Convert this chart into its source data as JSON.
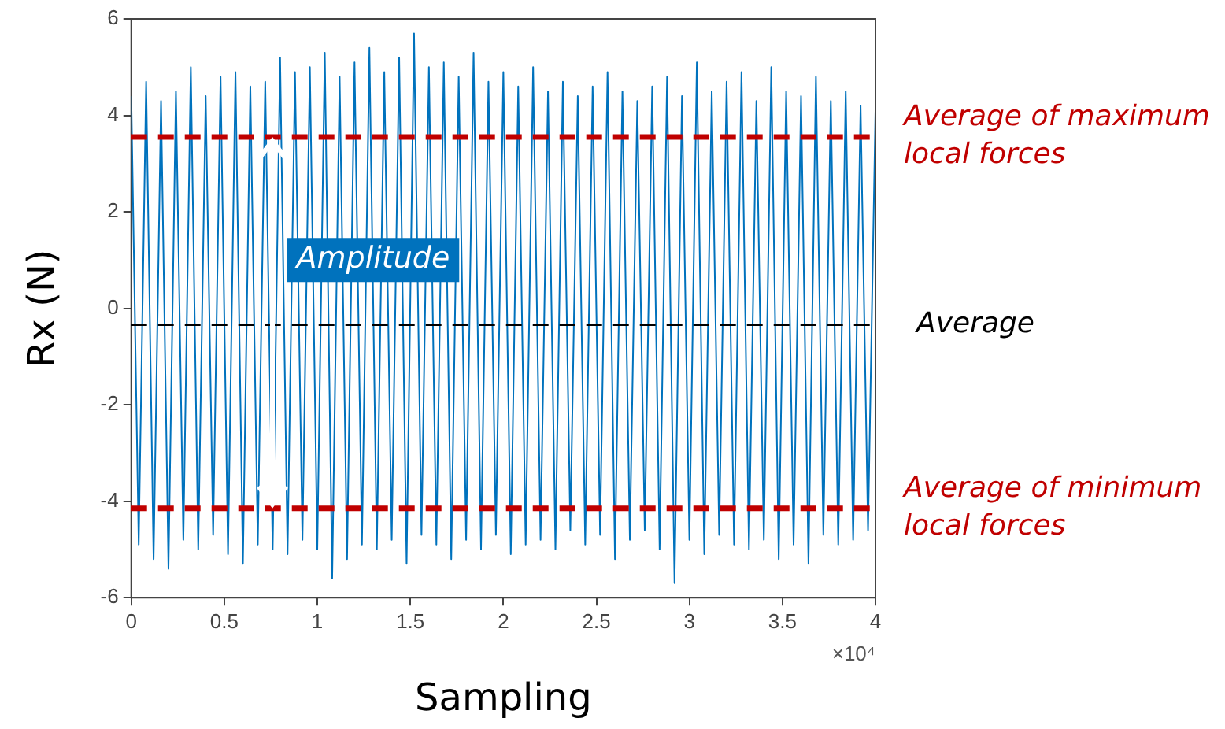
{
  "chart_data": {
    "type": "line",
    "xlabel": "Sampling",
    "ylabel": "Rx (N)",
    "xlim": [
      0,
      4
    ],
    "xticks": [
      0,
      0.5,
      1,
      1.5,
      2,
      2.5,
      3,
      3.5,
      4
    ],
    "ylim": [
      -6,
      6
    ],
    "yticks": [
      -6,
      -4,
      -2,
      0,
      2,
      4,
      6
    ],
    "grid": false,
    "legend": false,
    "line_style": "solid",
    "series": [
      {
        "color": "#0072bd",
        "x": [
          0,
          0.04,
          0.08,
          0.12,
          0.16,
          0.2,
          0.24,
          0.28,
          0.32,
          0.36,
          0.4,
          0.44,
          0.48,
          0.52,
          0.56,
          0.6,
          0.64,
          0.68,
          0.72,
          0.76,
          0.8,
          0.84,
          0.88,
          0.92,
          0.96,
          1,
          1.04,
          1.08,
          1.12,
          1.16,
          1.2,
          1.24,
          1.28,
          1.32,
          1.36,
          1.4,
          1.44,
          1.48,
          1.52,
          1.56,
          1.6,
          1.64,
          1.68,
          1.72,
          1.76,
          1.8,
          1.84,
          1.88,
          1.92,
          1.96,
          2,
          2.04,
          2.08,
          2.12,
          2.16,
          2.2,
          2.24,
          2.28,
          2.32,
          2.36,
          2.4,
          2.44,
          2.48,
          2.52,
          2.56,
          2.6,
          2.64,
          2.68,
          2.72,
          2.76,
          2.8,
          2.84,
          2.88,
          2.92,
          2.96,
          3,
          3.04,
          3.08,
          3.12,
          3.16,
          3.2,
          3.24,
          3.28,
          3.32,
          3.36,
          3.4,
          3.44,
          3.48,
          3.52,
          3.56,
          3.6,
          3.64,
          3.68,
          3.72,
          3.76,
          3.8,
          3.84,
          3.88,
          3.92,
          3.96,
          4
        ],
        "values": [
          4.4,
          -4.9,
          4.7,
          -5.2,
          4.3,
          -5.4,
          4.5,
          -4.8,
          5.0,
          -5.0,
          4.4,
          -4.7,
          4.8,
          -5.1,
          4.9,
          -5.3,
          4.6,
          -4.9,
          4.7,
          -5.0,
          5.2,
          -5.1,
          4.9,
          -4.8,
          5.0,
          -5.0,
          5.3,
          -5.6,
          4.8,
          -5.2,
          5.1,
          -4.9,
          5.4,
          -5.0,
          4.9,
          -4.8,
          5.2,
          -5.3,
          5.7,
          -4.7,
          5.0,
          -4.9,
          5.1,
          -5.2,
          4.8,
          -4.8,
          5.3,
          -5.0,
          4.7,
          -4.7,
          4.9,
          -5.1,
          4.6,
          -4.9,
          5.0,
          -4.8,
          4.5,
          -5.0,
          4.7,
          -4.6,
          4.4,
          -4.9,
          4.6,
          -4.7,
          4.9,
          -5.2,
          4.5,
          -4.8,
          4.3,
          -4.6,
          4.6,
          -5.0,
          4.8,
          -5.7,
          4.4,
          -4.8,
          5.1,
          -5.1,
          4.5,
          -4.7,
          4.7,
          -4.9,
          4.9,
          -5.0,
          4.3,
          -4.8,
          5.0,
          -5.2,
          4.5,
          -4.9,
          4.4,
          -5.3,
          4.8,
          -4.7,
          4.3,
          -4.9,
          4.5,
          -4.8,
          4.2,
          -4.6,
          4.1
        ]
      }
    ],
    "ref_lines": [
      {
        "axis": "y",
        "value": 3.55,
        "label": "Average of maximum local forces",
        "color": "#c00000",
        "line_style": "dashed"
      },
      {
        "axis": "y",
        "value": -0.35,
        "label": "Average",
        "color": "#000000",
        "line_style": "dashed"
      },
      {
        "axis": "y",
        "value": -4.15,
        "label": "Average of minimum local forces",
        "color": "#c00000",
        "line_style": "dashed"
      }
    ],
    "annotations": [
      {
        "text": "Amplitude",
        "x": 1.3,
        "y": 1.0
      },
      "×10⁴"
    ]
  }
}
